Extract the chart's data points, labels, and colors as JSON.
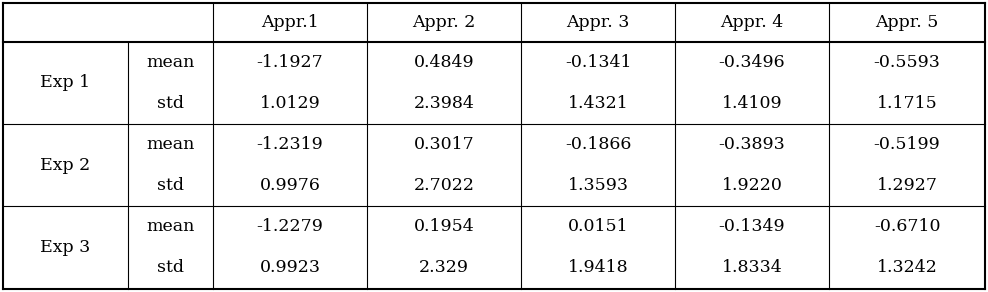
{
  "col_data_headers": [
    "Appr.1",
    "Appr. 2",
    "Appr. 3",
    "Appr. 4",
    "Appr. 5"
  ],
  "rows": [
    [
      "Exp 1",
      "mean",
      "-1.1927",
      "0.4849",
      "-0.1341",
      "-0.3496",
      "-0.5593"
    ],
    [
      "Exp 1",
      "std",
      "1.0129",
      "2.3984",
      "1.4321",
      "1.4109",
      "1.1715"
    ],
    [
      "Exp 2",
      "mean",
      "-1.2319",
      "0.3017",
      "-0.1866",
      "-0.3893",
      "-0.5199"
    ],
    [
      "Exp 2",
      "std",
      "0.9976",
      "2.7022",
      "1.3593",
      "1.9220",
      "1.2927"
    ],
    [
      "Exp 3",
      "mean",
      "-1.2279",
      "0.1954",
      "0.0151",
      "-0.1349",
      "-0.6710"
    ],
    [
      "Exp 3",
      "std",
      "0.9923",
      "2.329",
      "1.9418",
      "1.8334",
      "1.3242"
    ]
  ],
  "background_color": "#ffffff",
  "line_color": "#000000",
  "font_size": 12.5
}
